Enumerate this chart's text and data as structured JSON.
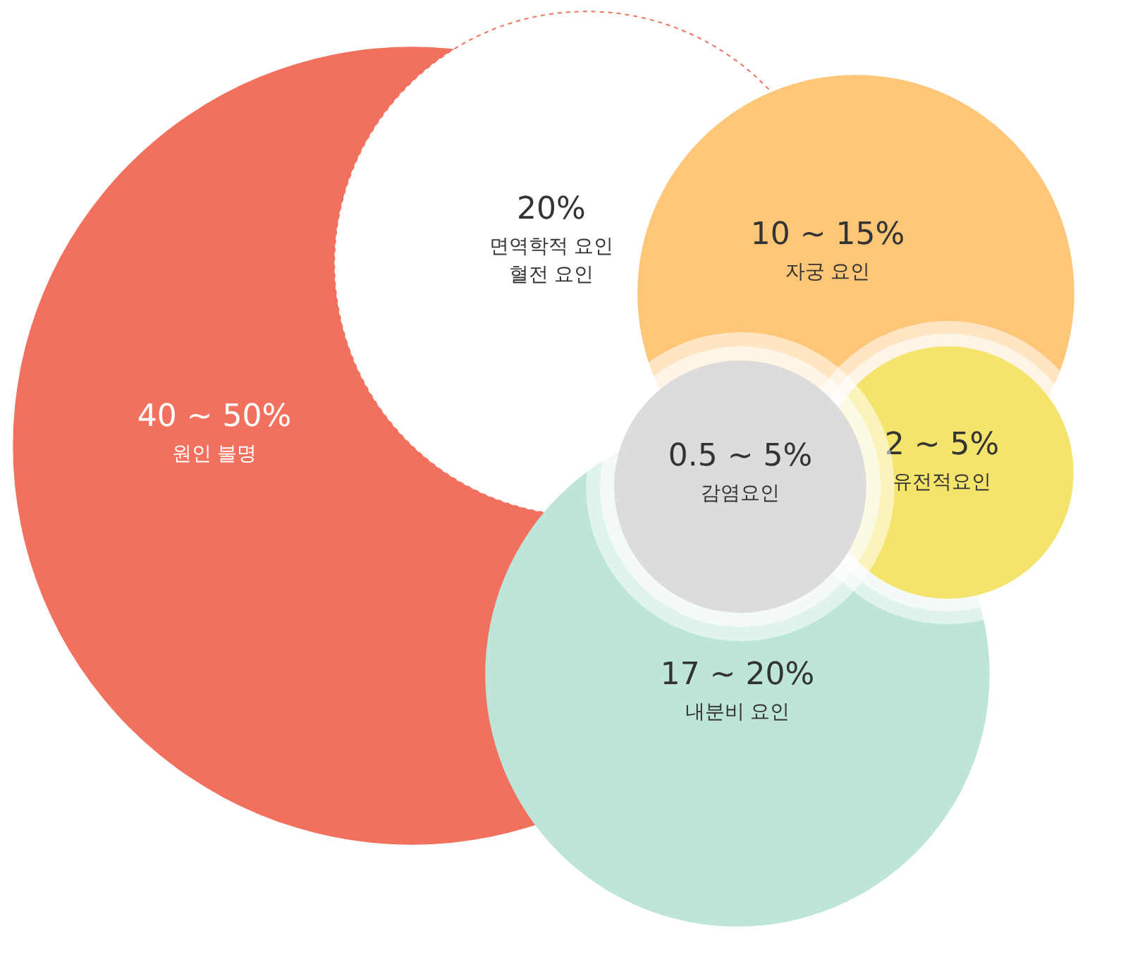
{
  "chart_data": {
    "type": "other",
    "categories": [
      "원인 불명",
      "면역학적 요인\n혈전 요인",
      "내분비 요인",
      "자궁 요인",
      "유전적요인",
      "감염요인"
    ],
    "value_labels": [
      "40 ~ 50%",
      "20%",
      "17 ~ 20%",
      "10 ~ 15%",
      "2 ~ 5%",
      "0.5 ~ 5%"
    ],
    "values": [
      50,
      20,
      20,
      15,
      5,
      5
    ],
    "colors": [
      "#f2705e",
      "#ffffff",
      "#bde5d9",
      "#fec677",
      "#f5e46c",
      "#dcdcdc"
    ]
  }
}
